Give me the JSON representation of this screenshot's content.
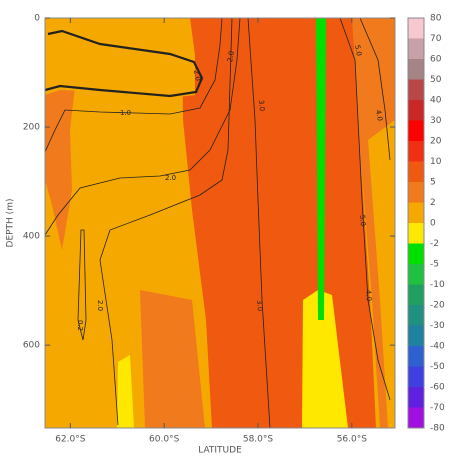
{
  "chart_data": {
    "type": "contour",
    "xlabel": "LATITUDE",
    "ylabel": "DEPTH (m)",
    "xlim": [
      -62.54,
      -55.08
    ],
    "xticks": [
      {
        "value": -62,
        "label": "62.0°S"
      },
      {
        "value": -60,
        "label": "60.0°S"
      },
      {
        "value": -58,
        "label": "58.0°S"
      },
      {
        "value": -56,
        "label": "56.0°S"
      }
    ],
    "ylim": [
      752,
      0
    ],
    "yticks": [
      0,
      200,
      400,
      600
    ],
    "colorbar": {
      "levels": [
        80,
        70,
        60,
        50,
        40,
        30,
        20,
        10,
        5,
        2,
        0,
        -2,
        -5,
        -10,
        -20,
        -30,
        -40,
        -50,
        -60,
        -70,
        -80
      ],
      "colors": [
        "#f8c8d0",
        "#c8a0a8",
        "#a48484",
        "#b84848",
        "#c82828",
        "#ff0000",
        "#f03010",
        "#f05a10",
        "#f07a1c",
        "#f5a800",
        "#ffe800",
        "#00e000",
        "#20c040",
        "#20a060",
        "#209080",
        "#2080a0",
        "#3060d0",
        "#4040e0",
        "#6020e0",
        "#a010e0"
      ]
    },
    "contour_labels": [
      "2.0",
      "2.0",
      "1.0",
      "2.0",
      "3.0",
      "5.0",
      "3.0",
      "4.0",
      "5.0",
      "4.0",
      "2.0",
      "0.2"
    ]
  }
}
